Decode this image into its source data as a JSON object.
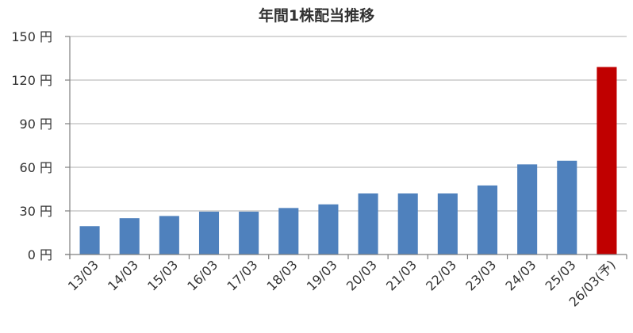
{
  "chart_data": {
    "type": "bar",
    "title": "年間1株配当推移",
    "xlabel": "",
    "ylabel": "",
    "ylim": [
      0,
      150
    ],
    "yticks": [
      0,
      30,
      60,
      90,
      120,
      150
    ],
    "ytick_labels": [
      "0 円",
      "30 円",
      "60 円",
      "90 円",
      "120 円",
      "150 円"
    ],
    "grid": true,
    "categories": [
      "13/03",
      "14/03",
      "15/03",
      "16/03",
      "17/03",
      "18/03",
      "19/03",
      "20/03",
      "21/03",
      "22/03",
      "23/03",
      "24/03",
      "25/03",
      "26/03(予)"
    ],
    "values": [
      19.5,
      25,
      26.5,
      29.5,
      29.5,
      32,
      34.5,
      42,
      42,
      42,
      47.5,
      62,
      64.5,
      129
    ],
    "colors": {
      "actual": "#4f81bd",
      "forecast": "#c00000",
      "grid": "#bfbfbf",
      "axis": "#7f7f7f"
    },
    "forecast_index": 13
  }
}
